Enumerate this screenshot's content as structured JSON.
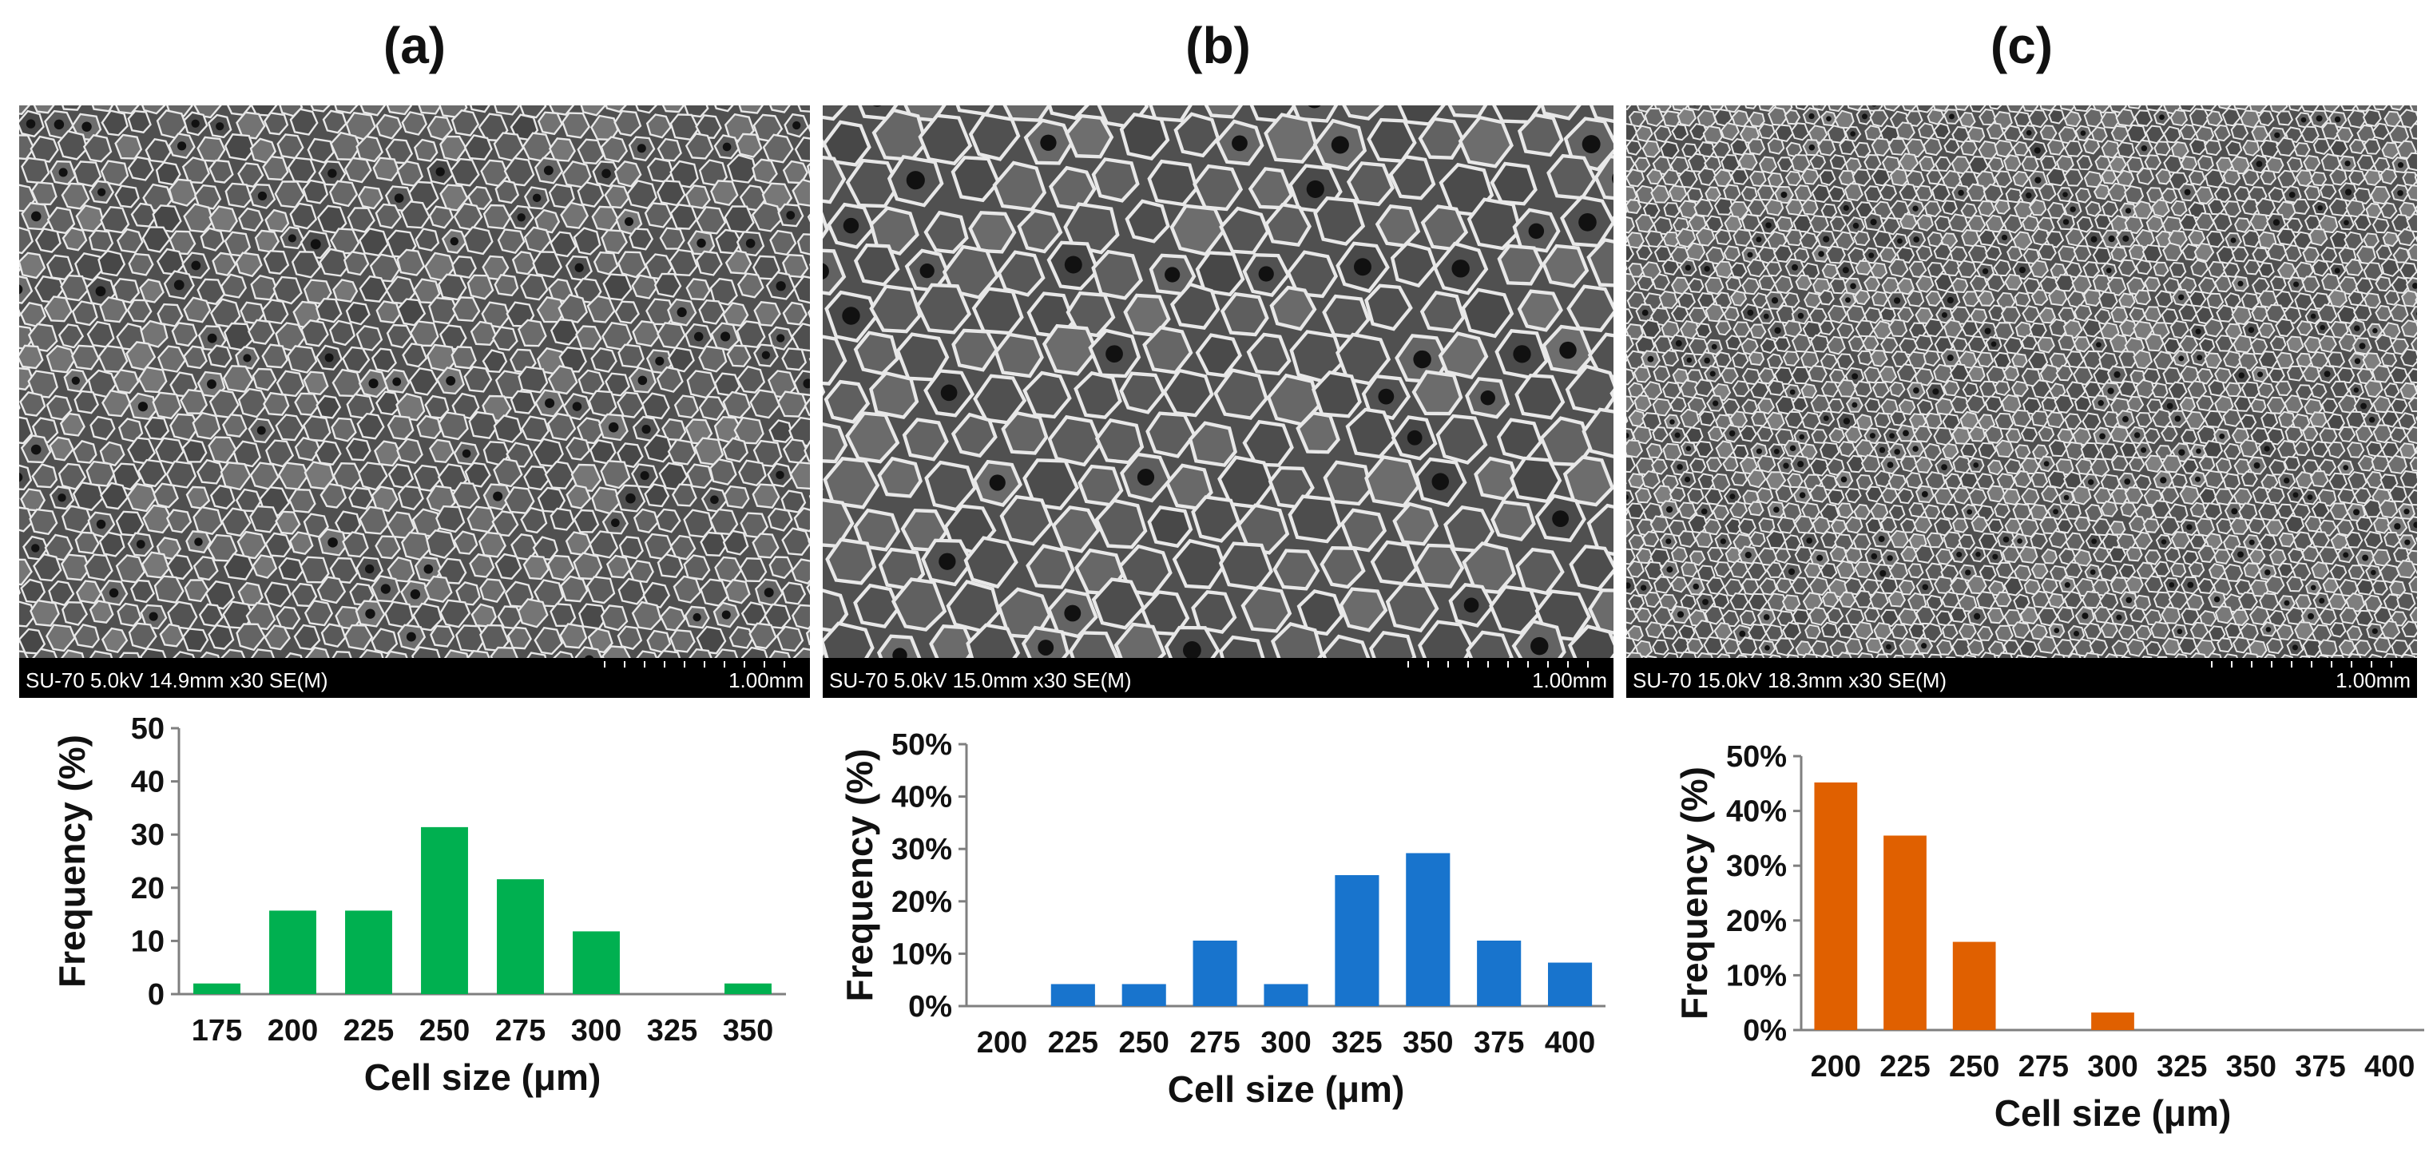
{
  "panels": [
    {
      "label": "(a)",
      "sem": {
        "info": "SU-70 5.0kV 14.9mm x30 SE(M)",
        "scale": "1.00mm"
      }
    },
    {
      "label": "(b)",
      "sem": {
        "info": "SU-70 5.0kV 15.0mm x30 SE(M)",
        "scale": "1.00mm"
      }
    },
    {
      "label": "(c)",
      "sem": {
        "info": "SU-70 15.0kV 18.3mm x30 SE(M)",
        "scale": "1.00mm"
      }
    }
  ],
  "chart_data": [
    {
      "type": "bar",
      "categories": [
        "175",
        "200",
        "225",
        "250",
        "275",
        "300",
        "325",
        "350"
      ],
      "values": [
        2,
        15.7,
        15.7,
        31.4,
        21.6,
        11.8,
        0,
        2
      ],
      "xlabel": "Cell size (μm)",
      "ylabel": "Frequency (%)",
      "ylim": [
        0,
        50
      ],
      "yticks": [
        "0",
        "10",
        "20",
        "30",
        "40",
        "50"
      ],
      "color": "#00b050",
      "grid": false
    },
    {
      "type": "bar",
      "categories": [
        "200",
        "225",
        "250",
        "275",
        "300",
        "325",
        "350",
        "375",
        "400"
      ],
      "values": [
        0,
        4.2,
        4.2,
        12.5,
        4.2,
        25,
        29.2,
        12.5,
        8.3
      ],
      "xlabel": "Cell size (μm)",
      "ylabel": "Frequency (%)",
      "ylim": [
        0,
        50
      ],
      "yticks": [
        "0%",
        "10%",
        "20%",
        "30%",
        "40%",
        "50%"
      ],
      "color": "#1874cd",
      "grid": false
    },
    {
      "type": "bar",
      "categories": [
        "200",
        "225",
        "250",
        "275",
        "300",
        "325",
        "350",
        "375",
        "400"
      ],
      "values": [
        45.2,
        35.5,
        16.1,
        0,
        3.2,
        0,
        0,
        0,
        0
      ],
      "xlabel": "Cell size (μm)",
      "ylabel": "Frequency (%)",
      "ylim": [
        0,
        50
      ],
      "yticks": [
        "0%",
        "10%",
        "20%",
        "30%",
        "40%",
        "50%"
      ],
      "color": "#e06000",
      "grid": false
    }
  ]
}
